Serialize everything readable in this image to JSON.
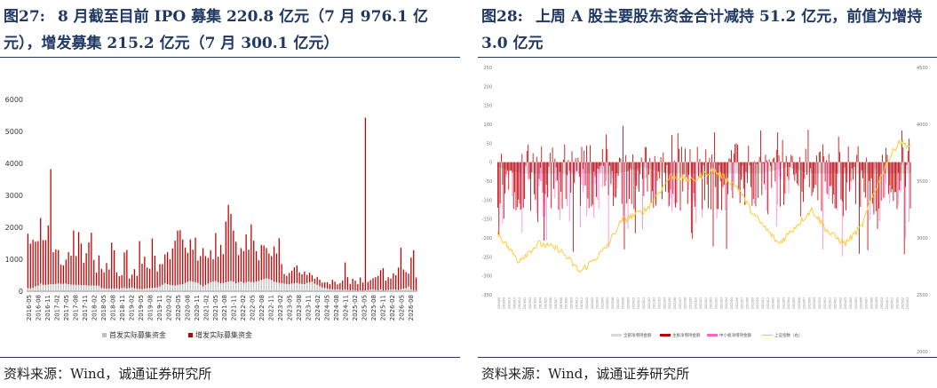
{
  "left": {
    "fig_number": "图27:",
    "title": "8 月截至目前 IPO 募集 220.8 亿元（7 月 976.1 亿元），增发募集 215.2 亿元（7 月 300.1 亿元）",
    "source": "资料来源：Wind，诚通证券研究所"
  },
  "right": {
    "fig_number": "图28:",
    "title": "上周 A 股主要股东资金合计减持 51.2 亿元，前值为增持 3.0 亿元",
    "source": "资料来源：Wind，诚通证券研究所"
  },
  "colors": {
    "title": "#1f3864",
    "ipo": "#bfbfbf",
    "seo": "#c00000",
    "main_board": "#c00000",
    "sme": "#ff66cc",
    "total": "#d9d9d9",
    "index": "#ffcc33"
  },
  "chart_data": [
    {
      "type": "bar",
      "stacked": true,
      "ylim": [
        0,
        6000
      ],
      "yticks": [
        "0",
        "1000",
        "2000",
        "3000",
        "4000",
        "5000",
        "6000"
      ],
      "xtick_labels": [
        "2016-05",
        "2016-08",
        "2016-11",
        "2017-02",
        "2017-05",
        "2017-08",
        "2017-11",
        "2018-02",
        "2018-05",
        "2018-08",
        "2018-11",
        "2019-02",
        "2019-05",
        "2019-08",
        "2019-11",
        "2020-02",
        "2020-05",
        "2020-08",
        "2020-11",
        "2021-02",
        "2021-05",
        "2021-08",
        "2021-11",
        "2022-02",
        "2022-05",
        "2022-08",
        "2022-11",
        "2023-02",
        "2023-05",
        "2023-08",
        "2023-11",
        "2024-02",
        "2024-05",
        "2024-08",
        "2024-11",
        "2025-02",
        "2025-05",
        "2025-08",
        "2025-11",
        "2026-02",
        "2026-05",
        "2026-08"
      ],
      "legend_position": "bottom",
      "series": [
        {
          "name": "首发实际募集资金",
          "values": [
            100,
            90,
            110,
            150,
            170,
            240,
            200,
            200,
            210,
            220,
            220,
            230,
            240,
            230,
            230,
            240,
            220,
            210,
            200,
            200,
            200,
            190,
            190,
            190,
            180,
            180,
            180,
            180,
            170,
            100,
            90,
            80,
            80,
            70,
            80,
            90,
            70,
            100,
            110,
            90,
            100,
            120,
            90,
            80,
            70,
            60,
            80,
            90,
            100,
            100,
            110,
            120,
            150,
            200,
            250,
            220,
            200,
            190,
            180,
            200,
            210,
            220,
            260,
            300,
            320,
            300,
            280,
            260,
            200,
            150,
            200,
            240,
            280,
            300,
            320,
            280,
            250,
            260,
            280,
            300,
            320,
            300,
            250,
            280,
            300,
            260,
            280,
            300,
            290,
            280,
            300,
            320,
            350,
            380,
            400,
            380,
            350,
            300,
            280,
            260,
            250,
            240,
            230,
            220,
            240,
            250,
            260,
            240,
            230,
            220,
            260,
            280,
            300,
            240,
            200,
            160,
            120,
            100,
            80,
            70,
            60,
            50,
            60,
            50,
            40,
            50,
            40,
            30,
            40,
            30,
            20,
            30,
            20,
            30,
            40,
            50,
            60,
            40,
            30,
            60,
            20,
            30,
            40,
            50,
            60,
            50,
            40,
            60,
            80,
            100,
            150,
            50,
            30,
            30,
            30,
            30
          ]
        },
        {
          "name": "增发实际募集资金",
          "values": [
            1700,
            1400,
            1500,
            1400,
            1400,
            2050,
            1400,
            1400,
            1850,
            3600,
            1000,
            1080,
            1050,
            600,
            580,
            750,
            1000,
            900,
            1700,
            900,
            1650,
            1300,
            700,
            1000,
            1350,
            1650,
            800,
            400,
            950,
            600,
            500,
            800,
            600,
            1450,
            1200,
            500,
            400,
            400,
            1100,
            1200,
            300,
            400,
            600,
            400,
            1500,
            800,
            1000,
            650,
            600,
            1550,
            1000,
            500,
            700,
            650,
            900,
            1000,
            800,
            1150,
            1400,
            1700,
            1700,
            1400,
            1100,
            900,
            1300,
            1000,
            1400,
            700,
            900,
            1200,
            900,
            800,
            1000,
            700,
            1500,
            800,
            1200,
            900,
            1900,
            2400,
            2100,
            1600,
            1300,
            850,
            1050,
            1000,
            1500,
            1000,
            1800,
            1300,
            950,
            650,
            1100,
            1050,
            950,
            800,
            750,
            1100,
            900,
            1400,
            600,
            300,
            250,
            350,
            400,
            500,
            550,
            350,
            300,
            400,
            250,
            300,
            200,
            150,
            250,
            200,
            150,
            180,
            200,
            150,
            300,
            250,
            150,
            200,
            300,
            850,
            400,
            200,
            350,
            300,
            200,
            400,
            250,
            5400,
            250,
            300,
            350,
            400,
            450,
            600,
            700,
            300,
            400,
            350,
            500,
            450,
            700,
            1300,
            600,
            500,
            400,
            1000,
            1250,
            400
          ]
        }
      ]
    },
    {
      "type": "bar",
      "overlay": "line",
      "ylim": [
        -350,
        250
      ],
      "y2lim": [
        2500,
        4500
      ],
      "yticks": [
        "250",
        "200",
        "150",
        "100",
        "50",
        "0",
        "-50",
        "-100",
        "-150",
        "-200",
        "-250",
        "-300",
        "-350"
      ],
      "y2ticks": [
        "4500",
        "4000",
        "3500",
        "3000",
        "2500",
        "2000"
      ],
      "xtick_labels": [
        "2018/08",
        "2018/09",
        "2018/10",
        "2018/11",
        "2018/12",
        "2019/01",
        "2019/02",
        "2019/03",
        "2019/04",
        "2019/05",
        "2019/06",
        "2019/07",
        "2019/08",
        "2019/09",
        "2019/10",
        "2019/11",
        "2019/12",
        "2020/01",
        "2020/02",
        "2020/03",
        "2020/04",
        "2020/05",
        "2020/06",
        "2020/07",
        "2020/08",
        "2020/09",
        "2020/10",
        "2020/11",
        "2020/12",
        "2021/01",
        "2021/02",
        "2021/03",
        "2021/04",
        "2021/05",
        "2021/06",
        "2021/07",
        "2021/08",
        "2021/09",
        "2021/10",
        "2021/11",
        "2021/12",
        "2022/01",
        "2022/02",
        "2022/03",
        "2022/04",
        "2022/05",
        "2022/06",
        "2022/07",
        "2022/08",
        "2022/09",
        "2022/10",
        "2022/11",
        "2022/12",
        "2023/01",
        "2023/02",
        "2023/03",
        "2023/04",
        "2023/05",
        "2023/06",
        "2023/07",
        "2023/08",
        "2023/09",
        "2023/10",
        "2023/11",
        "2023/12",
        "2024/01",
        "2024/02",
        "2024/03",
        "2024/04",
        "2024/05",
        "2024/06",
        "2024/07",
        "2024/08",
        "2024/09",
        "2024/10",
        "2024/11",
        "2024/12",
        "2025/01",
        "2025/02",
        "2025/03"
      ],
      "legend_position": "bottom",
      "series": [
        {
          "name": "全部净增持金额",
          "kind": "bar"
        },
        {
          "name": "主板净增持金额",
          "kind": "bar"
        },
        {
          "name": "中小板净增持金额",
          "kind": "bar"
        },
        {
          "name": "上证指数（右）",
          "kind": "line"
        }
      ]
    }
  ]
}
